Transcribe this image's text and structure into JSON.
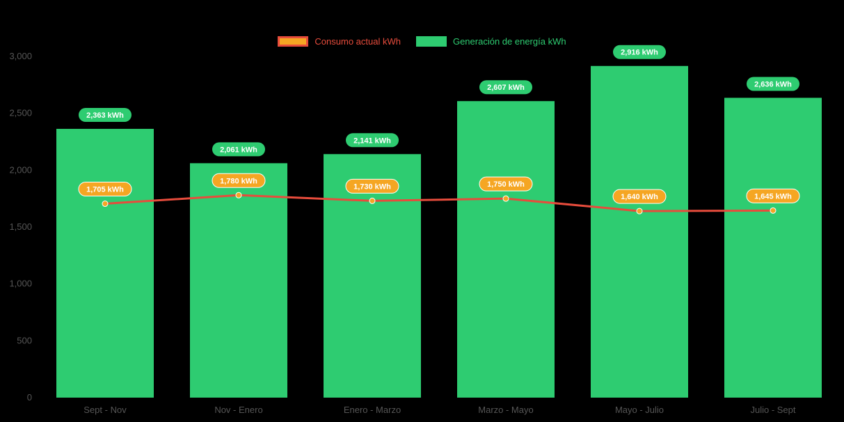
{
  "chart_data": {
    "type": "bar+line",
    "title": "",
    "xlabel": "",
    "ylabel": "",
    "grid": false,
    "legend_position": "top-center",
    "ylim": [
      0,
      3000
    ],
    "yticks": [
      0,
      500,
      1000,
      1500,
      2000,
      2500,
      3000
    ],
    "ytick_labels": [
      "0",
      "500",
      "1,000",
      "1,500",
      "2,000",
      "2,500",
      "3,000"
    ],
    "categories": [
      "Sept - Nov",
      "Nov - Enero",
      "Enero - Marzo",
      "Marzo - Mayo",
      "Mayo - Julio",
      "Julio - Sept"
    ],
    "series": [
      {
        "name": "Consumo actual kWh",
        "type": "line",
        "values": [
          1705,
          1780,
          1730,
          1750,
          1640,
          1645
        ],
        "labels": [
          "1,705 kWh",
          "1,780 kWh",
          "1,730 kWh",
          "1,750 kWh",
          "1,640 kWh",
          "1,645 kWh"
        ]
      },
      {
        "name": "Generación de energía kWh",
        "type": "bar",
        "values": [
          2363,
          2061,
          2141,
          2607,
          2916,
          2636
        ],
        "labels": [
          "2,363 kWh",
          "2,061 kWh",
          "2,141 kWh",
          "2,607 kWh",
          "2,916 kWh",
          "2,636 kWh"
        ]
      }
    ]
  },
  "legend": {
    "items": [
      {
        "label": "Consumo actual kWh",
        "text_color": "#e74c3c"
      },
      {
        "label": "Generación de energía kWh",
        "text_color": "#2ecc71"
      }
    ]
  },
  "colors": {
    "background": "#000000",
    "bar": "#2ecc71",
    "line": "#e74c3c",
    "marker": "#f5a623",
    "axis_text": "#565656",
    "bar_label_bg": "#2ecc71",
    "bar_label_text": "#ffffff",
    "line_label_bg": "#f5a623",
    "line_label_text": "#ffffff"
  }
}
